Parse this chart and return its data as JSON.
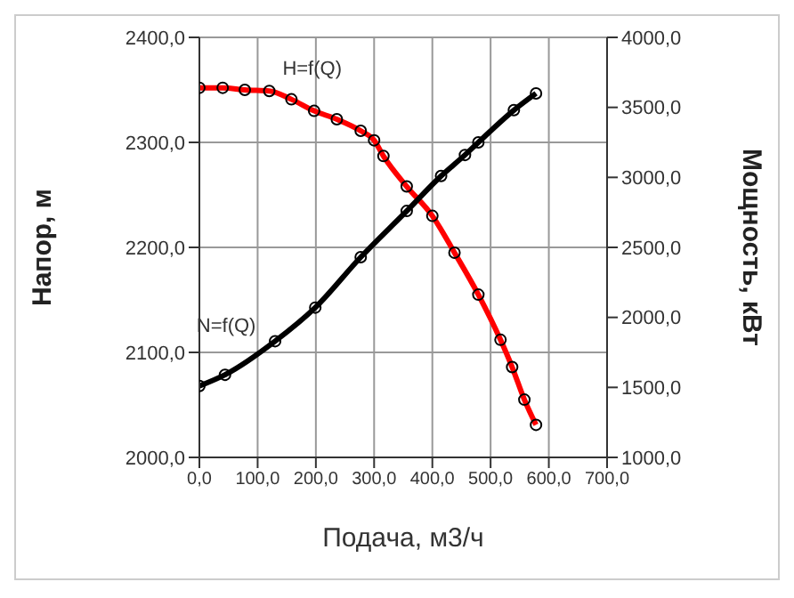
{
  "chart_data": {
    "type": "line",
    "xlabel": "Подача, м3/ч",
    "ylabel": "Напор, м",
    "y2label": "Мощность, кВт",
    "xlim": [
      0,
      700
    ],
    "xticks": [
      {
        "value": 0,
        "label": "0,0"
      },
      {
        "value": 100,
        "label": "100,0"
      },
      {
        "value": 200,
        "label": "200,0"
      },
      {
        "value": 300,
        "label": "300,0"
      },
      {
        "value": 400,
        "label": "400,0"
      },
      {
        "value": 500,
        "label": "500,0"
      },
      {
        "value": 600,
        "label": "600,0"
      },
      {
        "value": 700,
        "label": "700,0"
      }
    ],
    "ylim": [
      2000,
      2400
    ],
    "yticks": [
      {
        "value": 2000,
        "label": "2000,0"
      },
      {
        "value": 2100,
        "label": "2100,0"
      },
      {
        "value": 2200,
        "label": "2200,0"
      },
      {
        "value": 2300,
        "label": "2300,0"
      },
      {
        "value": 2400,
        "label": "2400,0"
      }
    ],
    "y2lim": [
      1000,
      4000
    ],
    "y2ticks": [
      {
        "value": 1000,
        "label": "1000,0"
      },
      {
        "value": 1500,
        "label": "1500,0"
      },
      {
        "value": 2000,
        "label": "2000,0"
      },
      {
        "value": 2500,
        "label": "2500,0"
      },
      {
        "value": 3000,
        "label": "3000,0"
      },
      {
        "value": 3500,
        "label": "3500,0"
      },
      {
        "value": 4000,
        "label": "4000,0"
      }
    ],
    "grid": true,
    "marker": "circle",
    "line_style": "solid",
    "series": [
      {
        "name": "H=f(Q)",
        "color": "#ff0000",
        "x": [
          0,
          40,
          78,
          120,
          158,
          197,
          236,
          277,
          300,
          316,
          356,
          400,
          438,
          479,
          517,
          537,
          558,
          578
        ],
        "values": [
          2352,
          2352,
          2350,
          2349,
          2341,
          2330,
          2322,
          2311,
          2302,
          2287,
          2258,
          2230,
          2195,
          2155,
          2112,
          2086,
          2055,
          2031
        ]
      },
      {
        "name": "N=f(Q)",
        "color": "#000000",
        "axis": "y2",
        "x": [
          0,
          44,
          130,
          199,
          277,
          356,
          415,
          456,
          479,
          540,
          578
        ],
        "values": [
          1510,
          1590,
          1830,
          2070,
          2430,
          2760,
          3010,
          3160,
          3250,
          3480,
          3600
        ]
      }
    ]
  }
}
